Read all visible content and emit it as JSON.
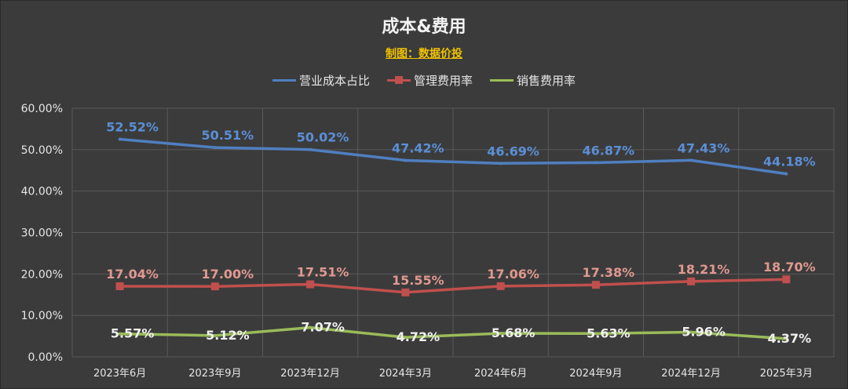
{
  "header": {
    "title": "成本&费用",
    "subtitle": "制图：数据价投"
  },
  "colors": {
    "background": "#3b3b3b",
    "grid": "#5a5a5a",
    "axis_text": "#e6e6e6"
  },
  "chart_data": {
    "type": "line",
    "title": "成本&费用",
    "subtitle": "制图：数据价投",
    "categories": [
      "2023年6月",
      "2023年9月",
      "2023年12月",
      "2024年3月",
      "2024年6月",
      "2024年9月",
      "2024年12月",
      "2025年3月"
    ],
    "yticks": [
      "0.00%",
      "10.00%",
      "20.00%",
      "30.00%",
      "40.00%",
      "50.00%",
      "60.00%"
    ],
    "ylim": [
      0,
      60
    ],
    "grid": true,
    "legend_position": "top-center",
    "series": [
      {
        "name": "营业成本占比",
        "color": "#4f7fc0",
        "label_color": "#5b8fd6",
        "marker": "none",
        "values": [
          52.52,
          50.51,
          50.02,
          47.42,
          46.69,
          46.87,
          47.43,
          44.18
        ],
        "labels": [
          "52.52%",
          "50.51%",
          "50.02%",
          "47.42%",
          "46.69%",
          "46.87%",
          "47.43%",
          "44.18%"
        ]
      },
      {
        "name": "管理费用率",
        "color": "#c0504d",
        "label_color": "#e09890",
        "marker": "square",
        "values": [
          17.04,
          17.0,
          17.51,
          15.55,
          17.06,
          17.38,
          18.21,
          18.7
        ],
        "labels": [
          "17.04%",
          "17.00%",
          "17.51%",
          "15.55%",
          "17.06%",
          "17.38%",
          "18.21%",
          "18.70%"
        ]
      },
      {
        "name": "销售费用率",
        "color": "#9bbb59",
        "label_color": "#f0f0f0",
        "marker": "none",
        "values": [
          5.57,
          5.12,
          7.07,
          4.72,
          5.68,
          5.63,
          5.96,
          4.37
        ],
        "labels": [
          "5.57%",
          "5.12%",
          "7.07%",
          "4.72%",
          "5.68%",
          "5.63%",
          "5.96%",
          "4.37%"
        ]
      }
    ]
  }
}
